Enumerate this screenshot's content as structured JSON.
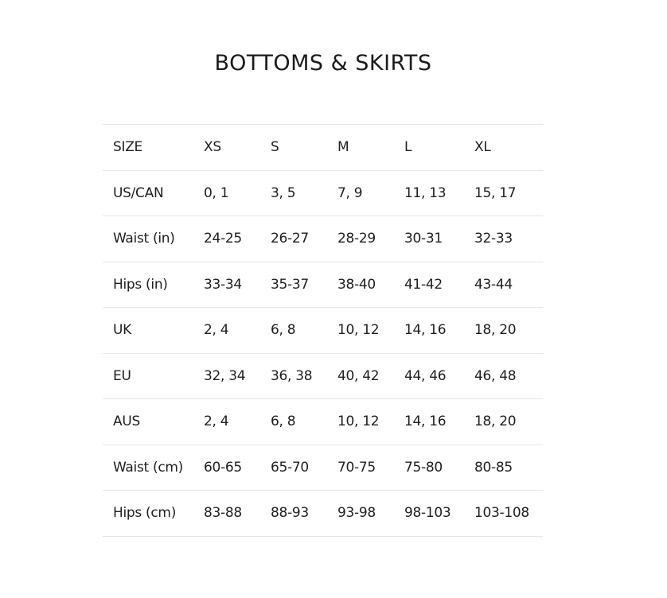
{
  "title": "BOTTOMS & SKIRTS",
  "table": {
    "rows": [
      [
        "SIZE",
        "XS",
        "S",
        "M",
        "L",
        "XL"
      ],
      [
        "US/CAN",
        "0, 1",
        "3, 5",
        "7, 9",
        "11, 13",
        "15, 17"
      ],
      [
        "Waist (in)",
        "24-25",
        "26-27",
        "28-29",
        "30-31",
        "32-33"
      ],
      [
        "Hips (in)",
        "33-34",
        "35-37",
        "38-40",
        "41-42",
        "43-44"
      ],
      [
        "UK",
        "2, 4",
        "6, 8",
        "10, 12",
        "14, 16",
        "18, 20"
      ],
      [
        "EU",
        "32, 34",
        "36, 38",
        "40, 42",
        "44, 46",
        "46, 48"
      ],
      [
        "AUS",
        "2, 4",
        "6, 8",
        "10, 12",
        "14, 16",
        "18, 20"
      ],
      [
        "Waist (cm)",
        "60-65",
        "65-70",
        "70-75",
        "75-80",
        "80-85"
      ],
      [
        "Hips (cm)",
        "83-88",
        "88-93",
        "93-98",
        "98-103",
        "103-108"
      ]
    ]
  }
}
